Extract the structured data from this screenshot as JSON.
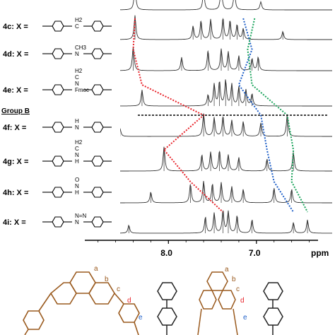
{
  "chart_data": {
    "type": "line",
    "title": "",
    "xlabel": "ppm",
    "ylabel": "",
    "xlim": [
      8.95,
      6.3
    ],
    "x_reversed": true,
    "grid": false,
    "x_ticks": [
      {
        "value": 8.0,
        "label": "8.0"
      },
      {
        "value": 7.0,
        "label": "7.0"
      }
    ],
    "group_label": "Group B",
    "series": [
      {
        "name": "4c: X =",
        "substituent": "CH2",
        "substituent_label": "H2\nC",
        "peaks": [
          [
            8.38,
            0.9
          ],
          [
            7.72,
            0.5
          ],
          [
            7.63,
            0.7
          ],
          [
            7.52,
            0.75
          ],
          [
            7.38,
            0.8
          ],
          [
            7.3,
            0.7
          ],
          [
            7.22,
            0.55
          ],
          [
            7.15,
            0.4
          ],
          [
            6.7,
            0.3
          ]
        ]
      },
      {
        "name": "4d: X =",
        "substituent": "N-CH3",
        "substituent_label": "CH3\nN",
        "peaks": [
          [
            8.4,
            0.9
          ],
          [
            7.85,
            0.5
          ],
          [
            7.55,
            0.75
          ],
          [
            7.4,
            0.8
          ],
          [
            7.32,
            0.7
          ],
          [
            7.2,
            0.55
          ],
          [
            7.05,
            0.45
          ],
          [
            6.98,
            0.5
          ]
        ]
      },
      {
        "name": "4e: X =",
        "substituent": "N(Fmoc)CH2",
        "substituent_label": "H2\nC\nN\nFmoc",
        "peaks": [
          [
            8.3,
            0.6
          ],
          [
            7.55,
            0.4
          ],
          [
            7.48,
            0.8
          ],
          [
            7.42,
            0.9
          ],
          [
            7.35,
            0.95
          ],
          [
            7.28,
            0.8
          ],
          [
            7.2,
            0.7
          ],
          [
            7.12,
            0.6
          ],
          [
            7.05,
            0.45
          ]
        ]
      },
      {
        "name": "4f: X =",
        "substituent": "NH",
        "substituent_label": "H\nN",
        "peaks": [
          [
            8.55,
            0.3
          ],
          [
            7.6,
            0.85
          ],
          [
            7.48,
            0.7
          ],
          [
            7.38,
            0.75
          ],
          [
            7.28,
            0.6
          ],
          [
            7.15,
            0.55
          ],
          [
            6.95,
            0.5
          ],
          [
            6.65,
            0.8
          ]
        ]
      },
      {
        "name": "4g: X =",
        "substituent": "NHCH2",
        "substituent_label": "H2\nC\nN\nH",
        "peaks": [
          [
            8.05,
            0.9
          ],
          [
            7.62,
            0.6
          ],
          [
            7.52,
            0.7
          ],
          [
            7.42,
            0.75
          ],
          [
            7.32,
            0.6
          ],
          [
            7.2,
            0.5
          ],
          [
            6.88,
            0.45
          ],
          [
            6.58,
            0.7
          ]
        ]
      },
      {
        "name": "4h: X =",
        "substituent": "NHC(O)",
        "substituent_label": "O\nN\nH",
        "peaks": [
          [
            8.2,
            0.4
          ],
          [
            7.75,
            0.7
          ],
          [
            7.6,
            0.8
          ],
          [
            7.5,
            0.7
          ],
          [
            7.4,
            0.75
          ],
          [
            7.28,
            0.6
          ],
          [
            7.15,
            0.5
          ],
          [
            6.8,
            0.55
          ],
          [
            6.6,
            0.5
          ]
        ]
      },
      {
        "name": "4i: X =",
        "substituent": "1,2,3-triazole",
        "substituent_label": "N=N\nN",
        "peaks": [
          [
            8.45,
            0.3
          ],
          [
            7.58,
            0.6
          ],
          [
            7.48,
            0.75
          ],
          [
            7.38,
            0.85
          ],
          [
            7.32,
            0.8
          ],
          [
            7.22,
            0.65
          ],
          [
            7.05,
            0.5
          ],
          [
            6.58,
            0.4
          ],
          [
            6.42,
            0.5
          ]
        ]
      }
    ],
    "structure_labels": [
      "a",
      "b",
      "c",
      "d",
      "e"
    ],
    "colors": {
      "spectrum": "#333333",
      "red": "#e8232a",
      "blue": "#1e5fc8",
      "green": "#19a35a",
      "brown": "#9a5a1e",
      "marker_d": "#e8232a",
      "marker_e": "#1e5fc8"
    }
  }
}
